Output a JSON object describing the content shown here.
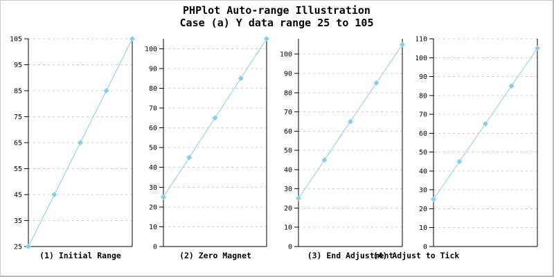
{
  "title": {
    "line1": "PHPlot Auto-range Illustration",
    "line2": "Case (a) Y data range 25 to 105"
  },
  "colors": {
    "line": "#87CEEB",
    "marker": "#87CEEB",
    "grid": "#CCCCCC",
    "axis": "#000000",
    "text": "#000000",
    "background": "#FFFFFF",
    "image_border": "#C9C9C9"
  },
  "chart_data": [
    {
      "type": "line",
      "title": "(1) Initial Range",
      "x": [
        1,
        2,
        3,
        4,
        5
      ],
      "y": [
        25,
        45,
        65,
        85,
        105
      ],
      "ylim": [
        25,
        105
      ],
      "yticks": [
        25,
        35,
        45,
        55,
        65,
        75,
        85,
        95,
        105
      ],
      "grid": true,
      "marker": "diamond"
    },
    {
      "type": "line",
      "title": "(2) Zero Magnet",
      "x": [
        1,
        2,
        3,
        4,
        5
      ],
      "y": [
        25,
        45,
        65,
        85,
        105
      ],
      "ylim": [
        0,
        105
      ],
      "yticks": [
        0,
        10,
        20,
        30,
        40,
        50,
        60,
        70,
        80,
        90,
        100
      ],
      "grid": true,
      "marker": "diamond"
    },
    {
      "type": "line",
      "title": "(3) End Adjustment",
      "x": [
        1,
        2,
        3,
        4,
        5
      ],
      "y": [
        25,
        45,
        65,
        85,
        105
      ],
      "ylim": [
        0,
        108
      ],
      "yticks": [
        0,
        10,
        20,
        30,
        40,
        50,
        60,
        70,
        80,
        90,
        100
      ],
      "grid": true,
      "marker": "diamond"
    },
    {
      "type": "line",
      "title": "(4) Adjust to Tick",
      "x": [
        1,
        2,
        3,
        4,
        5
      ],
      "y": [
        25,
        45,
        65,
        85,
        105
      ],
      "ylim": [
        0,
        110
      ],
      "yticks": [
        0,
        10,
        20,
        30,
        40,
        50,
        60,
        70,
        80,
        90,
        100,
        110
      ],
      "grid": true,
      "marker": "diamond"
    }
  ]
}
